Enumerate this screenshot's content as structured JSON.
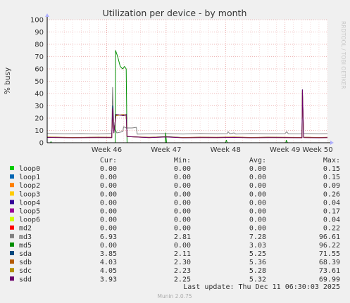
{
  "watermark": "RRDTOOL / TOBI OETIKER",
  "footer": {
    "last_update": "Last update: Thu Dec 11 06:30:03 2025",
    "version": "Munin 2.0.75"
  },
  "legend_header": {
    "cur": "Cur:",
    "min": "Min:",
    "avg": "Avg:",
    "max": "Max:"
  },
  "legend": [
    {
      "name": "loop0",
      "color": "#00cc00",
      "cur": "0.00",
      "min": "0.00",
      "avg": "0.00",
      "max": "0.15"
    },
    {
      "name": "loop1",
      "color": "#0066b3",
      "cur": "0.00",
      "min": "0.00",
      "avg": "0.00",
      "max": "0.15"
    },
    {
      "name": "loop2",
      "color": "#ff8000",
      "cur": "0.00",
      "min": "0.00",
      "avg": "0.00",
      "max": "0.09"
    },
    {
      "name": "loop3",
      "color": "#ffcc00",
      "cur": "0.00",
      "min": "0.00",
      "avg": "0.00",
      "max": "0.26"
    },
    {
      "name": "loop4",
      "color": "#330099",
      "cur": "0.00",
      "min": "0.00",
      "avg": "0.00",
      "max": "0.04"
    },
    {
      "name": "loop5",
      "color": "#990099",
      "cur": "0.00",
      "min": "0.00",
      "avg": "0.00",
      "max": "0.17"
    },
    {
      "name": "loop6",
      "color": "#ccff00",
      "cur": "0.00",
      "min": "0.00",
      "avg": "0.00",
      "max": "0.04"
    },
    {
      "name": "md2",
      "color": "#ff0000",
      "cur": "0.00",
      "min": "0.00",
      "avg": "0.00",
      "max": "0.22"
    },
    {
      "name": "md3",
      "color": "#808080",
      "cur": "6.93",
      "min": "2.81",
      "avg": "7.28",
      "max": "96.61"
    },
    {
      "name": "md5",
      "color": "#008f00",
      "cur": "0.00",
      "min": "0.00",
      "avg": "3.03",
      "max": "96.22"
    },
    {
      "name": "sda",
      "color": "#00487d",
      "cur": "3.85",
      "min": "2.11",
      "avg": "5.25",
      "max": "71.55"
    },
    {
      "name": "sdb",
      "color": "#b35a00",
      "cur": "4.03",
      "min": "2.30",
      "avg": "5.36",
      "max": "68.39"
    },
    {
      "name": "sdc",
      "color": "#b38f00",
      "cur": "4.05",
      "min": "2.23",
      "avg": "5.28",
      "max": "73.61"
    },
    {
      "name": "sdd",
      "color": "#6b006b",
      "cur": "3.93",
      "min": "2.25",
      "avg": "5.32",
      "max": "69.99"
    }
  ],
  "chart_data": {
    "type": "line",
    "title": "Utilization per device - by month",
    "xlabel": "",
    "ylabel": "% busy",
    "ylim": [
      0,
      100
    ],
    "yticks": [
      0,
      10,
      20,
      30,
      40,
      50,
      60,
      70,
      80,
      90,
      100
    ],
    "xlim": [
      0,
      33
    ],
    "xticks": [
      {
        "label": "Week 46",
        "x": 7
      },
      {
        "label": "Week 47",
        "x": 14
      },
      {
        "label": "Week 48",
        "x": 21
      },
      {
        "label": "Week 49",
        "x": 28
      },
      {
        "label": "Week 50",
        "x": 35
      }
    ],
    "grid": true,
    "series": [
      {
        "name": "md3",
        "color": "#808080",
        "points": [
          [
            0,
            7.5
          ],
          [
            2,
            7.2
          ],
          [
            4,
            7.4
          ],
          [
            6,
            7.1
          ],
          [
            7.6,
            7.5
          ],
          [
            7.7,
            45
          ],
          [
            7.85,
            10
          ],
          [
            8.0,
            11
          ],
          [
            8.2,
            8
          ],
          [
            8.9,
            9
          ],
          [
            9.0,
            13
          ],
          [
            9.3,
            12
          ],
          [
            10.0,
            12
          ],
          [
            10.5,
            12.5
          ],
          [
            10.6,
            7
          ],
          [
            12,
            7.2
          ],
          [
            14,
            7.4
          ],
          [
            16,
            7.1
          ],
          [
            18,
            7.5
          ],
          [
            20,
            7.2
          ],
          [
            21.2,
            7.4
          ],
          [
            21.3,
            9
          ],
          [
            21.5,
            7.3
          ],
          [
            22,
            8
          ],
          [
            22.2,
            7.1
          ],
          [
            24,
            7.5
          ],
          [
            26,
            7.2
          ],
          [
            28,
            7.4
          ],
          [
            28.2,
            9
          ],
          [
            28.4,
            7.2
          ],
          [
            30,
            7.3
          ],
          [
            30.05,
            43
          ],
          [
            30.15,
            7.5
          ],
          [
            32,
            7.2
          ],
          [
            33,
            7.4
          ]
        ]
      },
      {
        "name": "md5",
        "color": "#008f00",
        "points": [
          [
            0,
            0
          ],
          [
            0.4,
            0
          ],
          [
            0.45,
            1
          ],
          [
            0.5,
            0
          ],
          [
            7.8,
            0
          ],
          [
            8.0,
            0
          ],
          [
            8.05,
            75
          ],
          [
            8.3,
            70
          ],
          [
            8.6,
            62
          ],
          [
            8.9,
            60
          ],
          [
            9.1,
            62
          ],
          [
            9.3,
            60
          ],
          [
            9.4,
            0
          ],
          [
            13.9,
            0
          ],
          [
            13.95,
            8
          ],
          [
            14.05,
            0
          ],
          [
            21.0,
            0
          ],
          [
            21.1,
            2
          ],
          [
            21.2,
            0
          ],
          [
            28.1,
            0
          ],
          [
            28.15,
            2
          ],
          [
            28.3,
            0
          ],
          [
            33,
            0
          ]
        ]
      },
      {
        "name": "sda",
        "color": "#00487d",
        "points": [
          [
            0,
            4.5
          ],
          [
            3,
            4.2
          ],
          [
            6,
            4.4
          ],
          [
            7.6,
            4.3
          ],
          [
            7.7,
            30
          ],
          [
            7.85,
            9
          ],
          [
            8.1,
            23
          ],
          [
            9.0,
            22
          ],
          [
            9.3,
            23
          ],
          [
            9.4,
            5
          ],
          [
            12,
            4.3
          ],
          [
            14,
            5
          ],
          [
            16,
            4.2
          ],
          [
            18,
            4.4
          ],
          [
            20,
            4.3
          ],
          [
            22,
            4.5
          ],
          [
            24,
            4.2
          ],
          [
            26,
            4.4
          ],
          [
            28,
            4.3
          ],
          [
            30,
            4.2
          ],
          [
            30.05,
            43
          ],
          [
            30.2,
            4.4
          ],
          [
            32,
            4.2
          ],
          [
            33,
            4.3
          ]
        ]
      },
      {
        "name": "sdb",
        "color": "#b35a00",
        "points": [
          [
            0,
            4.6
          ],
          [
            3,
            4.3
          ],
          [
            6,
            4.5
          ],
          [
            7.6,
            4.4
          ],
          [
            7.7,
            27
          ],
          [
            7.85,
            9
          ],
          [
            8.1,
            22
          ],
          [
            9.0,
            23
          ],
          [
            9.3,
            22
          ],
          [
            9.4,
            5
          ],
          [
            12,
            4.4
          ],
          [
            14,
            4.8
          ],
          [
            16,
            4.3
          ],
          [
            18,
            4.5
          ],
          [
            20,
            4.4
          ],
          [
            22,
            4.6
          ],
          [
            24,
            4.3
          ],
          [
            26,
            4.5
          ],
          [
            28,
            4.4
          ],
          [
            30,
            4.3
          ],
          [
            30.05,
            42
          ],
          [
            30.2,
            4.5
          ],
          [
            32,
            4.3
          ],
          [
            33,
            4.4
          ]
        ]
      },
      {
        "name": "sdc",
        "color": "#b38f00",
        "points": [
          [
            0,
            4.4
          ],
          [
            3,
            4.1
          ],
          [
            6,
            4.3
          ],
          [
            7.6,
            4.2
          ],
          [
            7.7,
            25
          ],
          [
            7.85,
            8
          ],
          [
            8.1,
            22
          ],
          [
            9.0,
            23
          ],
          [
            9.3,
            22
          ],
          [
            9.4,
            5
          ],
          [
            12,
            4.2
          ],
          [
            14,
            4.7
          ],
          [
            16,
            4.1
          ],
          [
            18,
            4.3
          ],
          [
            20,
            4.2
          ],
          [
            22,
            4.4
          ],
          [
            24,
            4.1
          ],
          [
            26,
            4.3
          ],
          [
            28,
            4.2
          ],
          [
            30,
            4.1
          ],
          [
            30.05,
            42
          ],
          [
            30.2,
            4.3
          ],
          [
            32,
            4.1
          ],
          [
            33,
            4.2
          ]
        ]
      },
      {
        "name": "sdd",
        "color": "#6b006b",
        "points": [
          [
            0,
            4.3
          ],
          [
            3,
            4.0
          ],
          [
            6,
            4.2
          ],
          [
            7.6,
            4.1
          ],
          [
            7.7,
            28
          ],
          [
            7.85,
            8
          ],
          [
            8.1,
            23
          ],
          [
            9.0,
            22
          ],
          [
            9.3,
            23
          ],
          [
            9.4,
            5
          ],
          [
            12,
            4.1
          ],
          [
            14,
            4.6
          ],
          [
            16,
            4.0
          ],
          [
            18,
            4.2
          ],
          [
            20,
            4.1
          ],
          [
            22,
            4.3
          ],
          [
            24,
            4.0
          ],
          [
            26,
            4.2
          ],
          [
            28,
            4.1
          ],
          [
            30,
            4.0
          ],
          [
            30.05,
            43
          ],
          [
            30.2,
            4.2
          ],
          [
            32,
            4.0
          ],
          [
            33,
            4.1
          ]
        ]
      }
    ]
  }
}
